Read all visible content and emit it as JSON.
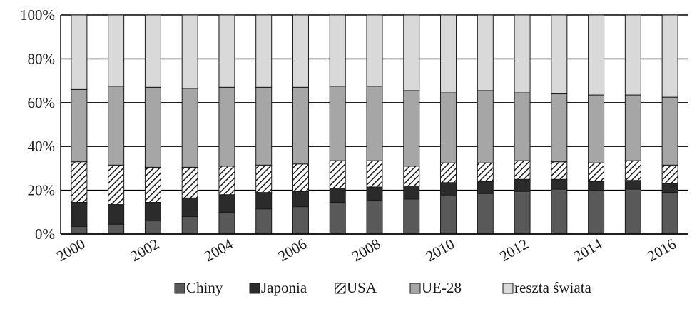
{
  "chart_data": {
    "type": "bar",
    "stacked": true,
    "title": "",
    "xlabel": "",
    "ylabel": "",
    "ylim": [
      0,
      100
    ],
    "ytick_values": [
      0,
      20,
      40,
      60,
      80,
      100
    ],
    "ytick_labels": [
      "0%",
      "20%",
      "40%",
      "60%",
      "80%",
      "100%"
    ],
    "categories": [
      "2000",
      "2001",
      "2002",
      "2003",
      "2004",
      "2005",
      "2006",
      "2007",
      "2008",
      "2009",
      "2010",
      "2011",
      "2012",
      "2013",
      "2014",
      "2015",
      "2016"
    ],
    "xtick_labels": [
      "2000",
      "",
      "2002",
      "",
      "2004",
      "",
      "2006",
      "",
      "2008",
      "",
      "2010",
      "",
      "2012",
      "",
      "2014",
      "",
      "2016"
    ],
    "grid": "horizontal",
    "legend_placement": "bottom",
    "series": [
      {
        "name": "Chiny",
        "fill": "#595959",
        "pattern": "solid",
        "values": [
          3.5,
          4.5,
          6,
          8,
          10,
          11.5,
          12.5,
          14.5,
          15.5,
          16,
          17.5,
          18.5,
          19.5,
          20.5,
          20,
          20.5,
          19
        ]
      },
      {
        "name": "Japonia",
        "fill": "#2b2b2b",
        "pattern": "solid",
        "values": [
          11,
          9,
          8.5,
          8.5,
          8,
          7.5,
          7,
          6.5,
          6,
          6,
          6,
          5.5,
          5.5,
          4.5,
          4,
          4,
          4
        ]
      },
      {
        "name": "USA",
        "fill": "#ffffff",
        "pattern": "hatch",
        "values": [
          18.5,
          18,
          16,
          14,
          13,
          12.5,
          12.5,
          12.5,
          12,
          9,
          9,
          8.5,
          8.5,
          8,
          8.5,
          9,
          8.5
        ]
      },
      {
        "name": "UE-28",
        "fill": "#a6a6a6",
        "pattern": "solid",
        "values": [
          33,
          36,
          36.5,
          36,
          36,
          35.5,
          35,
          34,
          34,
          34.5,
          32,
          33,
          31,
          31,
          31,
          30,
          31
        ]
      },
      {
        "name": "reszta świata",
        "fill": "#d9d9d9",
        "pattern": "solid",
        "values": [
          34,
          32.5,
          33,
          33.5,
          33,
          33,
          33,
          32.5,
          32.5,
          34.5,
          35.5,
          34.5,
          35.5,
          36,
          36.5,
          36.5,
          37.5
        ]
      }
    ]
  }
}
